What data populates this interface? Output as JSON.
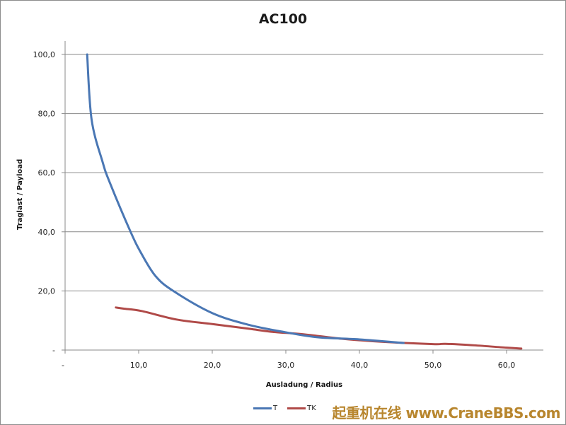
{
  "chart_data": {
    "type": "line",
    "title": "AC100",
    "xlabel": "Ausladung / Radius",
    "ylabel": "Traglast / Payload",
    "xlim": [
      0,
      65
    ],
    "ylim": [
      0,
      105
    ],
    "x_ticks": [
      "-",
      "10,0",
      "20,0",
      "30,0",
      "40,0",
      "50,0",
      "60,0"
    ],
    "x_tick_values": [
      0,
      10,
      20,
      30,
      40,
      50,
      60
    ],
    "y_ticks": [
      "-",
      "20,0",
      "40,0",
      "60,0",
      "80,0",
      "100,0"
    ],
    "y_tick_values": [
      0,
      20,
      40,
      60,
      80,
      100
    ],
    "grid": "horizontal",
    "legend_position": "bottom",
    "series": [
      {
        "name": "T",
        "color": "#4a77b4",
        "x": [
          3.0,
          3.6,
          5.1,
          6.1,
          8.9,
          10.4,
          12.3,
          14.7,
          20.0,
          25.0,
          30.0,
          34.4,
          40.0,
          46.0
        ],
        "y": [
          100.0,
          78.0,
          63.6,
          56.5,
          40.0,
          32.5,
          25.0,
          20.0,
          12.5,
          8.5,
          6.0,
          4.3,
          3.6,
          2.4
        ]
      },
      {
        "name": "TK",
        "color": "#b04a48",
        "x": [
          6.9,
          8.0,
          10.4,
          15.2,
          20.0,
          25.0,
          28.0,
          32.5,
          37.3,
          43.0,
          50.0,
          51.7,
          55.6,
          60.0,
          62.0
        ],
        "y": [
          14.4,
          14.0,
          13.2,
          10.3,
          8.8,
          7.2,
          6.2,
          5.3,
          3.9,
          2.8,
          2.0,
          2.1,
          1.6,
          0.8,
          0.5
        ]
      }
    ]
  },
  "legend": {
    "items": [
      {
        "label": "T"
      },
      {
        "label": "TK"
      }
    ]
  },
  "watermark": "起重机在线 www.CraneBBS.com"
}
